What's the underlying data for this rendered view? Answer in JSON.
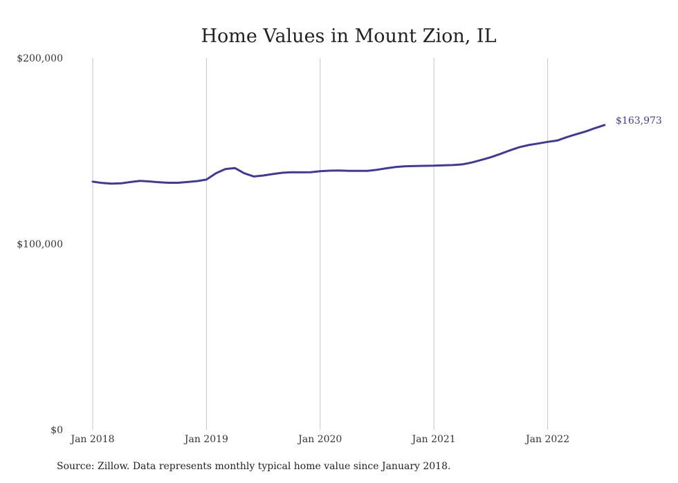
{
  "chart_data": {
    "type": "line",
    "title": "Home Values in Mount Zion, IL",
    "xlabel": "",
    "ylabel": "",
    "ylim": [
      0,
      200000
    ],
    "yticks": [
      {
        "value": 0,
        "label": "$0"
      },
      {
        "value": 100000,
        "label": "$100,000"
      },
      {
        "value": 200000,
        "label": "$200,000"
      }
    ],
    "xticks": [
      {
        "month": 0,
        "label": "Jan 2018"
      },
      {
        "month": 12,
        "label": "Jan 2019"
      },
      {
        "month": 24,
        "label": "Jan 2020"
      },
      {
        "month": 36,
        "label": "Jan 2021"
      },
      {
        "month": 48,
        "label": "Jan 2022"
      }
    ],
    "grid": "vertical",
    "line_color": "#3f3a9a",
    "series": [
      {
        "x": [
          "2018-01",
          "2018-02",
          "2018-03",
          "2018-04",
          "2018-05",
          "2018-06",
          "2018-07",
          "2018-08",
          "2018-09",
          "2018-10",
          "2018-11",
          "2018-12",
          "2019-01",
          "2019-02",
          "2019-03",
          "2019-04",
          "2019-05",
          "2019-06",
          "2019-07",
          "2019-08",
          "2019-09",
          "2019-10",
          "2019-11",
          "2019-12",
          "2020-01",
          "2020-02",
          "2020-03",
          "2020-04",
          "2020-05",
          "2020-06",
          "2020-07",
          "2020-08",
          "2020-09",
          "2020-10",
          "2020-11",
          "2020-12",
          "2021-01",
          "2021-02",
          "2021-03",
          "2021-04",
          "2021-05",
          "2021-06",
          "2021-07",
          "2021-08",
          "2021-09",
          "2021-10",
          "2021-11",
          "2021-12",
          "2022-01",
          "2022-02",
          "2022-03",
          "2022-04",
          "2022-05",
          "2022-06",
          "2022-07"
        ],
        "values": [
          133500,
          132800,
          132400,
          132600,
          133300,
          133900,
          133600,
          133200,
          132900,
          132900,
          133300,
          133800,
          134600,
          138000,
          140300,
          140800,
          138000,
          136300,
          136800,
          137600,
          138300,
          138600,
          138500,
          138600,
          139100,
          139400,
          139500,
          139300,
          139300,
          139300,
          139900,
          140700,
          141400,
          141800,
          141900,
          142000,
          142100,
          142300,
          142400,
          142800,
          143800,
          145200,
          146600,
          148400,
          150300,
          152000,
          153200,
          154000,
          154900,
          155600,
          157400,
          159000,
          160500,
          162300,
          163973
        ]
      }
    ],
    "end_label": "$163,973"
  },
  "source_note": "Source: Zillow. Data represents monthly typical home value since January 2018."
}
